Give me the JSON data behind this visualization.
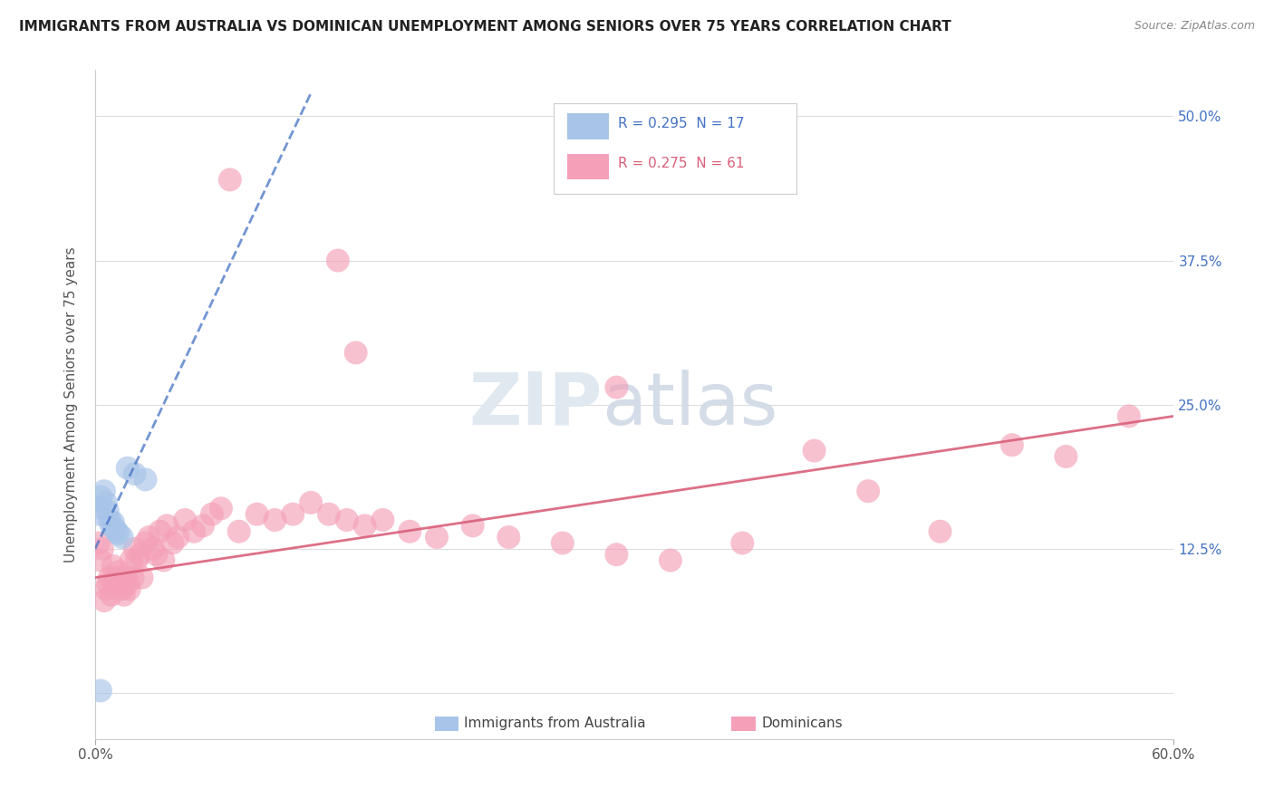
{
  "title": "IMMIGRANTS FROM AUSTRALIA VS DOMINICAN UNEMPLOYMENT AMONG SENIORS OVER 75 YEARS CORRELATION CHART",
  "source": "Source: ZipAtlas.com",
  "ylabel": "Unemployment Among Seniors over 75 years",
  "australia_R": "R = 0.295",
  "australia_N": "N = 17",
  "dominican_R": "R = 0.275",
  "dominican_N": "N = 61",
  "xlim": [
    0.0,
    0.6
  ],
  "ylim": [
    -0.04,
    0.54
  ],
  "australia_color": "#a8c4e8",
  "dominican_color": "#f4a0b8",
  "australia_line_color": "#4472c4",
  "dominican_line_color": "#d9607a",
  "aus_points_x": [
    0.002,
    0.003,
    0.004,
    0.005,
    0.006,
    0.007,
    0.008,
    0.009,
    0.01,
    0.011,
    0.012,
    0.013,
    0.015,
    0.018,
    0.022,
    0.028,
    0.003
  ],
  "aus_points_y": [
    0.155,
    0.17,
    0.16,
    0.175,
    0.165,
    0.158,
    0.15,
    0.145,
    0.148,
    0.142,
    0.14,
    0.138,
    0.135,
    0.195,
    0.19,
    0.185,
    0.002
  ],
  "dom_points_x": [
    0.002,
    0.003,
    0.004,
    0.005,
    0.006,
    0.007,
    0.008,
    0.009,
    0.01,
    0.011,
    0.012,
    0.013,
    0.014,
    0.015,
    0.016,
    0.017,
    0.018,
    0.019,
    0.02,
    0.021,
    0.022,
    0.023,
    0.025,
    0.026,
    0.028,
    0.03,
    0.032,
    0.034,
    0.036,
    0.038,
    0.04,
    0.043,
    0.046,
    0.05,
    0.055,
    0.06,
    0.065,
    0.07,
    0.08,
    0.09,
    0.1,
    0.11,
    0.12,
    0.13,
    0.14,
    0.15,
    0.16,
    0.175,
    0.19,
    0.21,
    0.23,
    0.26,
    0.29,
    0.32,
    0.36,
    0.4,
    0.43,
    0.47,
    0.51,
    0.54,
    0.575
  ],
  "dom_points_y": [
    0.13,
    0.115,
    0.125,
    0.08,
    0.09,
    0.095,
    0.1,
    0.085,
    0.11,
    0.095,
    0.1,
    0.105,
    0.095,
    0.09,
    0.085,
    0.1,
    0.095,
    0.09,
    0.115,
    0.1,
    0.125,
    0.115,
    0.12,
    0.1,
    0.13,
    0.135,
    0.125,
    0.12,
    0.14,
    0.115,
    0.145,
    0.13,
    0.135,
    0.15,
    0.14,
    0.145,
    0.155,
    0.16,
    0.14,
    0.155,
    0.15,
    0.155,
    0.165,
    0.155,
    0.15,
    0.145,
    0.15,
    0.14,
    0.135,
    0.145,
    0.135,
    0.13,
    0.12,
    0.115,
    0.13,
    0.21,
    0.175,
    0.14,
    0.215,
    0.205,
    0.24
  ],
  "dom_outlier1": [
    0.075,
    0.445
  ],
  "dom_outlier2": [
    0.135,
    0.375
  ],
  "dom_outlier3": [
    0.145,
    0.295
  ],
  "dom_outlier4": [
    0.29,
    0.265
  ]
}
